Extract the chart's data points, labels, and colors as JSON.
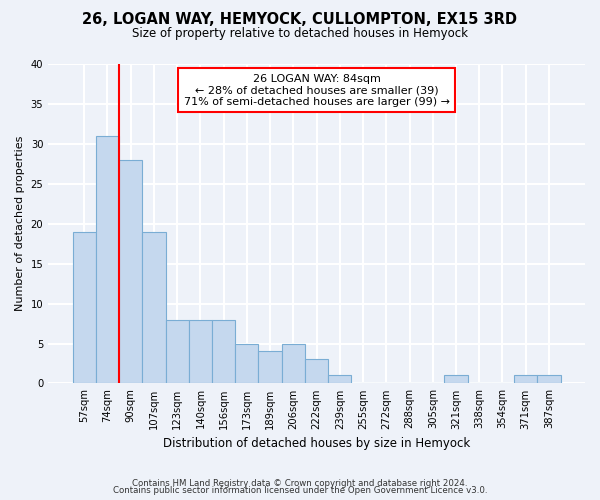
{
  "title": "26, LOGAN WAY, HEMYOCK, CULLOMPTON, EX15 3RD",
  "subtitle": "Size of property relative to detached houses in Hemyock",
  "xlabel": "Distribution of detached houses by size in Hemyock",
  "ylabel": "Number of detached properties",
  "bar_color": "#c5d8ee",
  "bar_edge_color": "#7aadd4",
  "categories": [
    "57sqm",
    "74sqm",
    "90sqm",
    "107sqm",
    "123sqm",
    "140sqm",
    "156sqm",
    "173sqm",
    "189sqm",
    "206sqm",
    "222sqm",
    "239sqm",
    "255sqm",
    "272sqm",
    "288sqm",
    "305sqm",
    "321sqm",
    "338sqm",
    "354sqm",
    "371sqm",
    "387sqm"
  ],
  "values": [
    19,
    31,
    28,
    19,
    8,
    8,
    8,
    5,
    4,
    5,
    3,
    1,
    0,
    0,
    0,
    0,
    1,
    0,
    0,
    1,
    1
  ],
  "ylim": [
    0,
    40
  ],
  "yticks": [
    0,
    5,
    10,
    15,
    20,
    25,
    30,
    35,
    40
  ],
  "annotation_title": "26 LOGAN WAY: 84sqm",
  "annotation_line1": "← 28% of detached houses are smaller (39)",
  "annotation_line2": "71% of semi-detached houses are larger (99) →",
  "property_line_index": 1.5,
  "background_color": "#eef2f9",
  "grid_color": "#ffffff",
  "footer_line1": "Contains HM Land Registry data © Crown copyright and database right 2024.",
  "footer_line2": "Contains public sector information licensed under the Open Government Licence v3.0."
}
